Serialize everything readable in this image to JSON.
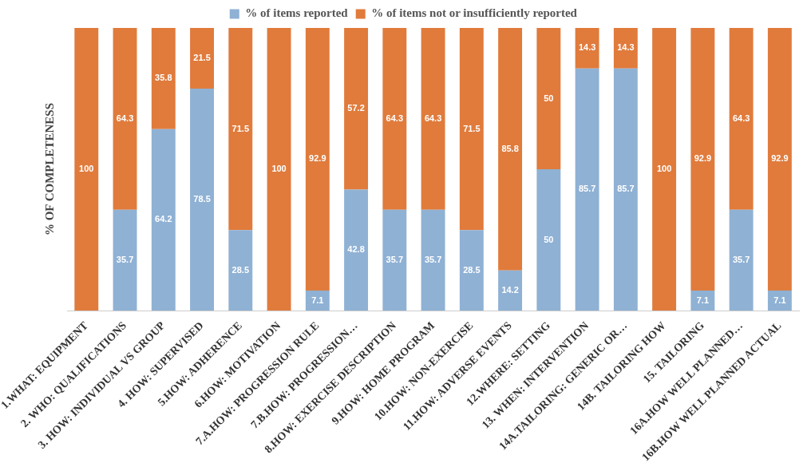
{
  "chart_data": {
    "type": "bar",
    "stacked": true,
    "ylabel": "% OF COMPLETENESS",
    "legend": "top",
    "grid": false,
    "tick_labels": "x",
    "categories": [
      "1.WHAT: EQUIPMENT",
      "2. WHO: QUALIFICATIONS",
      "3. HOW: INDIVIDUAL VS GROUP",
      "4. HOW: SUPERVISED",
      "5.HOW: ADHERENCE",
      "6.HOW: MOTIVATION",
      "7.A.HOW: PROGRESSION RULE",
      "7.B.HOW: PROGRESSION…",
      "8.HOW: EXERCISE DESCRIPTION",
      "9.HOW: HOME PROGRAM",
      "10.HOW: NON-EXERCISE",
      "11.HOW: ADVERSE EVENTS",
      "12.WHERE: SETTING",
      "13. WHEN: INTERVENTION",
      "14A.TAILORING: GENERIC OR…",
      "14B. TAILORING HOW",
      "15. TAILORING",
      "16A.HOW WELL PLANNED…",
      "16B.HOW WELL PLANNED ACTUAL"
    ],
    "series": [
      {
        "name": "% of items reported",
        "color": "#8fb1d4",
        "values": [
          0,
          35.7,
          64.2,
          78.5,
          28.5,
          0,
          7.1,
          42.8,
          35.7,
          35.7,
          28.5,
          14.2,
          50,
          85.7,
          85.7,
          0,
          7.1,
          35.7,
          7.1
        ],
        "value_labels": [
          null,
          "35.7",
          "64.2",
          "78.5",
          "28.5",
          null,
          "7.1",
          "42.8",
          "35.7",
          "35.7",
          "28.5",
          "14.2",
          "50",
          "85.7",
          "85.7",
          null,
          "7.1",
          "35.7",
          "7.1"
        ]
      },
      {
        "name": "% of items not or insufficiently reported",
        "color": "#e07b3c",
        "values": [
          100,
          64.3,
          35.8,
          21.5,
          71.5,
          100,
          92.9,
          57.2,
          64.3,
          64.3,
          71.5,
          85.8,
          50,
          14.3,
          14.3,
          100,
          92.9,
          64.3,
          92.9
        ],
        "value_labels": [
          "100",
          "64.3",
          "35.8",
          "21.5",
          "71.5",
          "100",
          "92.9",
          "57.2",
          "64.3",
          "64.3",
          "71.5",
          "85.8",
          "50",
          "14.3",
          "14.3",
          "100",
          "92.9",
          "64.3",
          "92.9"
        ]
      }
    ]
  }
}
